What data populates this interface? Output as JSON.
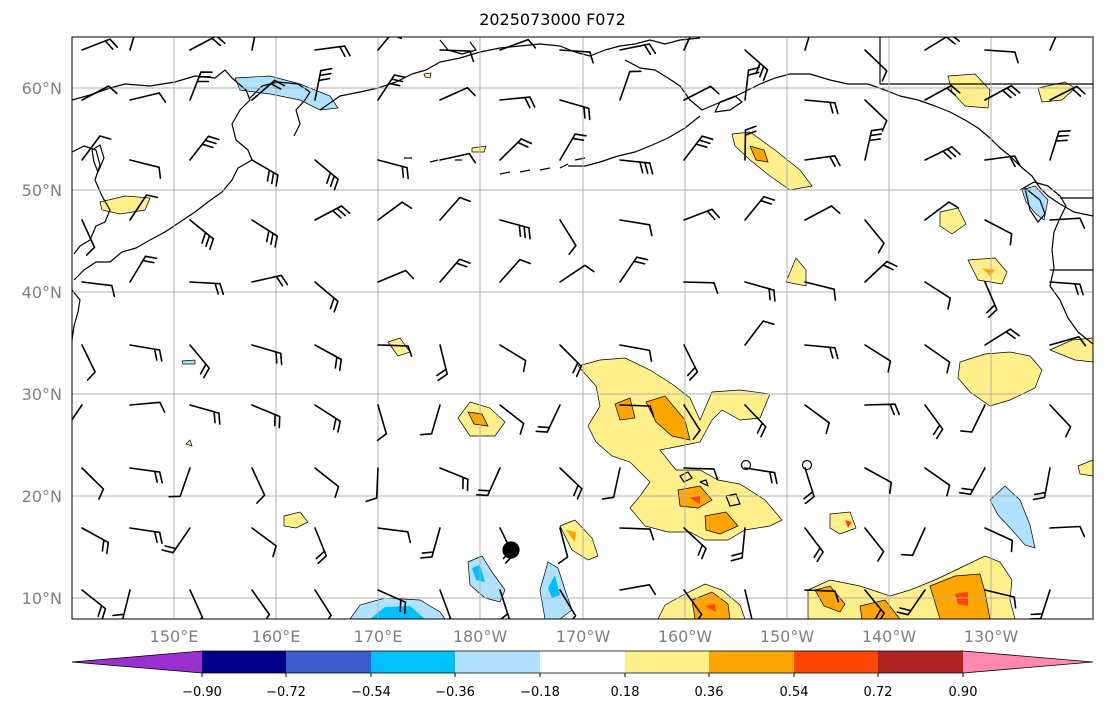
{
  "title": "2025073000 F072",
  "map": {
    "lat_labels": [
      "60°N",
      "50°N",
      "40°N",
      "30°N",
      "20°N",
      "10°N"
    ],
    "lon_labels": [
      "150°E",
      "160°E",
      "170°E",
      "180°W",
      "170°W",
      "160°W",
      "150°W",
      "140°W",
      "130°W"
    ],
    "grid_color": "#b0b0b0",
    "coast_color": "#000000"
  },
  "colorbar": {
    "colors": [
      "#9b30d0",
      "#00008b",
      "#3a5fcd",
      "#00bfff",
      "#b0e2ff",
      "#ffffff",
      "#fff08c",
      "#ffa500",
      "#ff4500",
      "#b22222",
      "#ff88b0"
    ],
    "tick_labels": [
      "−0.90",
      "−0.72",
      "−0.54",
      "−0.36",
      "−0.18",
      "0.18",
      "0.36",
      "0.54",
      "0.72",
      "0.90"
    ]
  },
  "icons": [
    "wind-barb-icon",
    "storm-dot-icon",
    "hollow-circle-icon"
  ]
}
